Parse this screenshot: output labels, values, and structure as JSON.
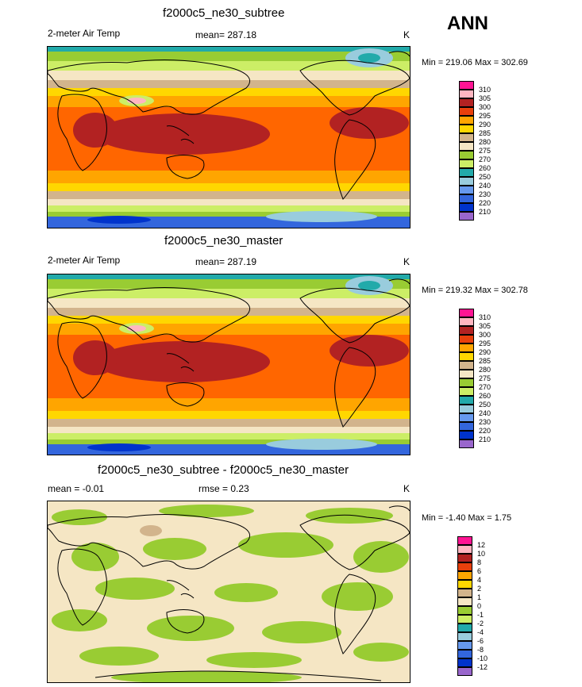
{
  "season": "ANN",
  "panels": [
    {
      "title": "f2000c5_ne30_subtree",
      "left_label": "2-meter Air Temp",
      "center_label": "mean= 287.18",
      "right_label": "K",
      "minmax": "Min = 219.06 Max = 302.69",
      "legend": [
        "310",
        "305",
        "300",
        "295",
        "290",
        "285",
        "280",
        "275",
        "270",
        "260",
        "250",
        "240",
        "230",
        "220",
        "210"
      ]
    },
    {
      "title": "f2000c5_ne30_master",
      "left_label": "2-meter Air Temp",
      "center_label": "mean= 287.19",
      "right_label": "K",
      "minmax": "Min = 219.32 Max = 302.78",
      "legend": [
        "310",
        "305",
        "300",
        "295",
        "290",
        "285",
        "280",
        "275",
        "270",
        "260",
        "250",
        "240",
        "230",
        "220",
        "210"
      ]
    },
    {
      "title": "f2000c5_ne30_subtree - f2000c5_ne30_master",
      "left_label": "mean =  -0.01",
      "center_label": "rmse =   0.23",
      "right_label": "K",
      "minmax": "Min =  -1.40 Max =   1.75",
      "legend": [
        "12",
        "10",
        "8",
        "6",
        "4",
        "2",
        "1",
        "0",
        "-1",
        "-2",
        "-4",
        "-6",
        "-8",
        "-10",
        "-12"
      ]
    }
  ],
  "colors": {
    "palette": [
      "#9966cc",
      "#0033cc",
      "#3366dd",
      "#6699ee",
      "#99ccdd",
      "#22aaaa",
      "#99cc33",
      "#ccee66",
      "#f5e6c4",
      "#d2b48c",
      "#ffd700",
      "#ffa500",
      "#ff6600",
      "#e8400c",
      "#b22222",
      "#ffb6c1",
      "#ff1493"
    ],
    "land": "#000000"
  }
}
